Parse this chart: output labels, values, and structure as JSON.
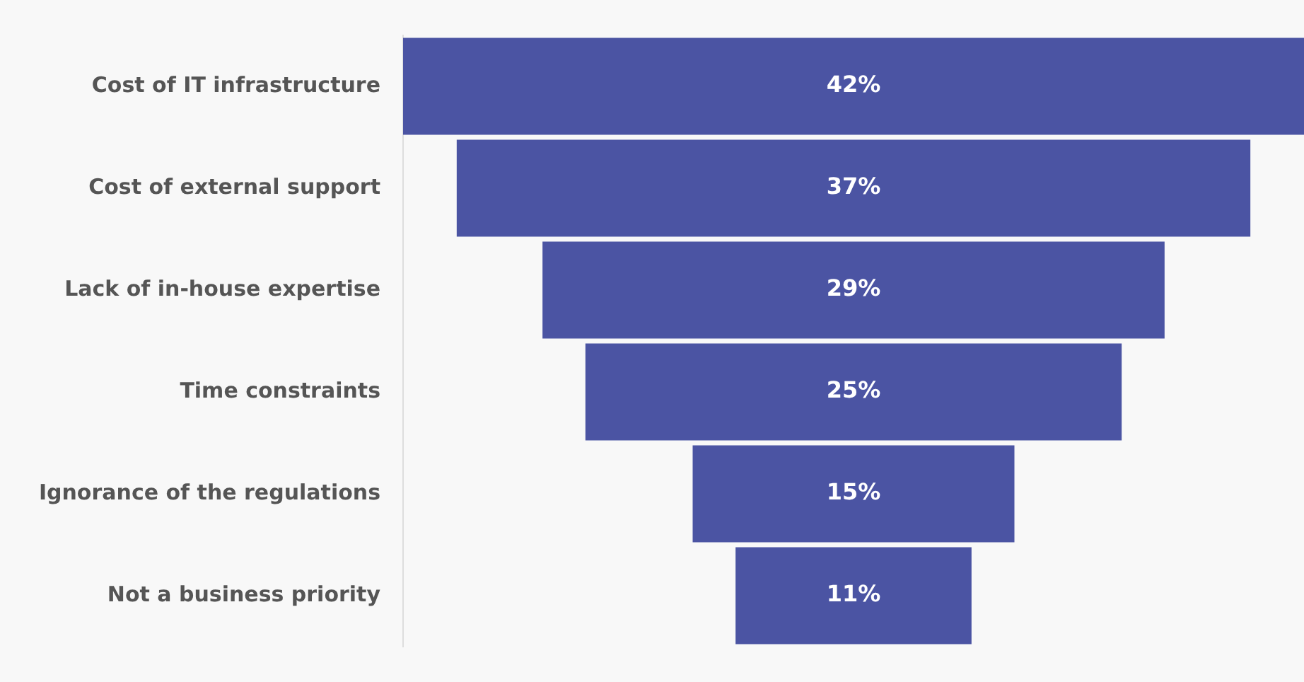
{
  "chart_data": {
    "type": "other",
    "categories": [
      "Cost of IT infrastructure",
      "Cost of external support",
      "Lack of in-house expertise",
      "Time constraints",
      "Ignorance of the regulations",
      "Not a business priority"
    ],
    "values": [
      42,
      37,
      29,
      25,
      15,
      11
    ],
    "value_labels": [
      "42%",
      "37%",
      "29%",
      "25%",
      "15%",
      "11%"
    ],
    "color": "#4b54a3"
  }
}
